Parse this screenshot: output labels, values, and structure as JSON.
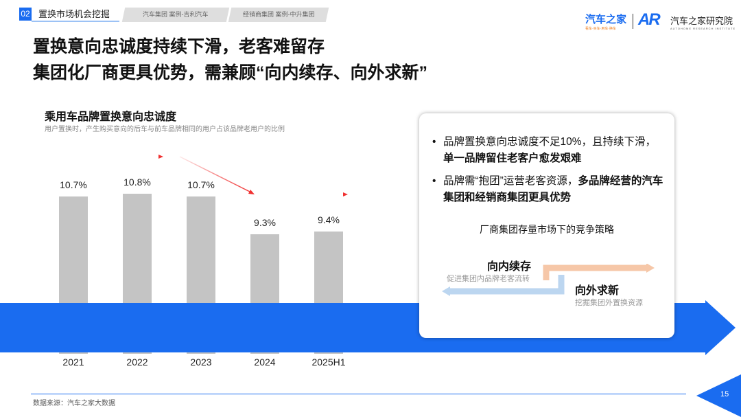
{
  "header": {
    "section_number": "02",
    "section_title": "置换市场机会挖掘",
    "tabs": [
      "汽车集团 案例-吉利汽车",
      "经销商集团 案例-中升集团"
    ],
    "logo1": "汽车之家",
    "logo1_sub": "看车·买车·用车·换车",
    "logo2": "汽车之家研究院",
    "logo2_sub": "AUTOHOME RESEARCH INSTITUTE",
    "logo2_mark": "AR"
  },
  "title_lines": [
    "置换意向忠诚度持续下滑，老客难留存",
    "集团化厂商更具优势，需兼顾“向内续存、向外求新”"
  ],
  "chart_data": {
    "type": "bar",
    "title": "乘用车品牌置换意向忠诚度",
    "subtitle": "用户置换时，产生购买意向的后车与前车品牌相同的用户占该品牌老用户的比例",
    "categories": [
      "2021",
      "2022",
      "2023",
      "2024",
      "2025H1"
    ],
    "values": [
      10.7,
      10.8,
      10.7,
      9.3,
      9.4
    ],
    "labels": [
      "10.7%",
      "10.8%",
      "10.7%",
      "9.3%",
      "9.4%"
    ],
    "ylim": [
      4.87,
      11
    ],
    "bar_color": "#c4c4c4",
    "band_color": "#1a6cf0",
    "trend_color": "#f03030"
  },
  "card": {
    "bullets": [
      {
        "text": "品牌置换意向忠诚度不足10%，且持续下滑，",
        "bold": "单一品牌留住老客户愈发艰难"
      },
      {
        "text": "品牌需“抱团”运营老客资源，",
        "bold": "多品牌经营的汽车集团和经销商集团更具优势"
      }
    ],
    "strategy_title": "厂商集团存量市场下的竞争策略",
    "inward": {
      "title": "向内续存",
      "desc": "促进集团内品牌老客流转"
    },
    "outward": {
      "title": "向外求新",
      "desc": "挖掘集团外置换资源"
    }
  },
  "footer": {
    "source": "数据来源：汽车之家大数据",
    "page": "15"
  }
}
